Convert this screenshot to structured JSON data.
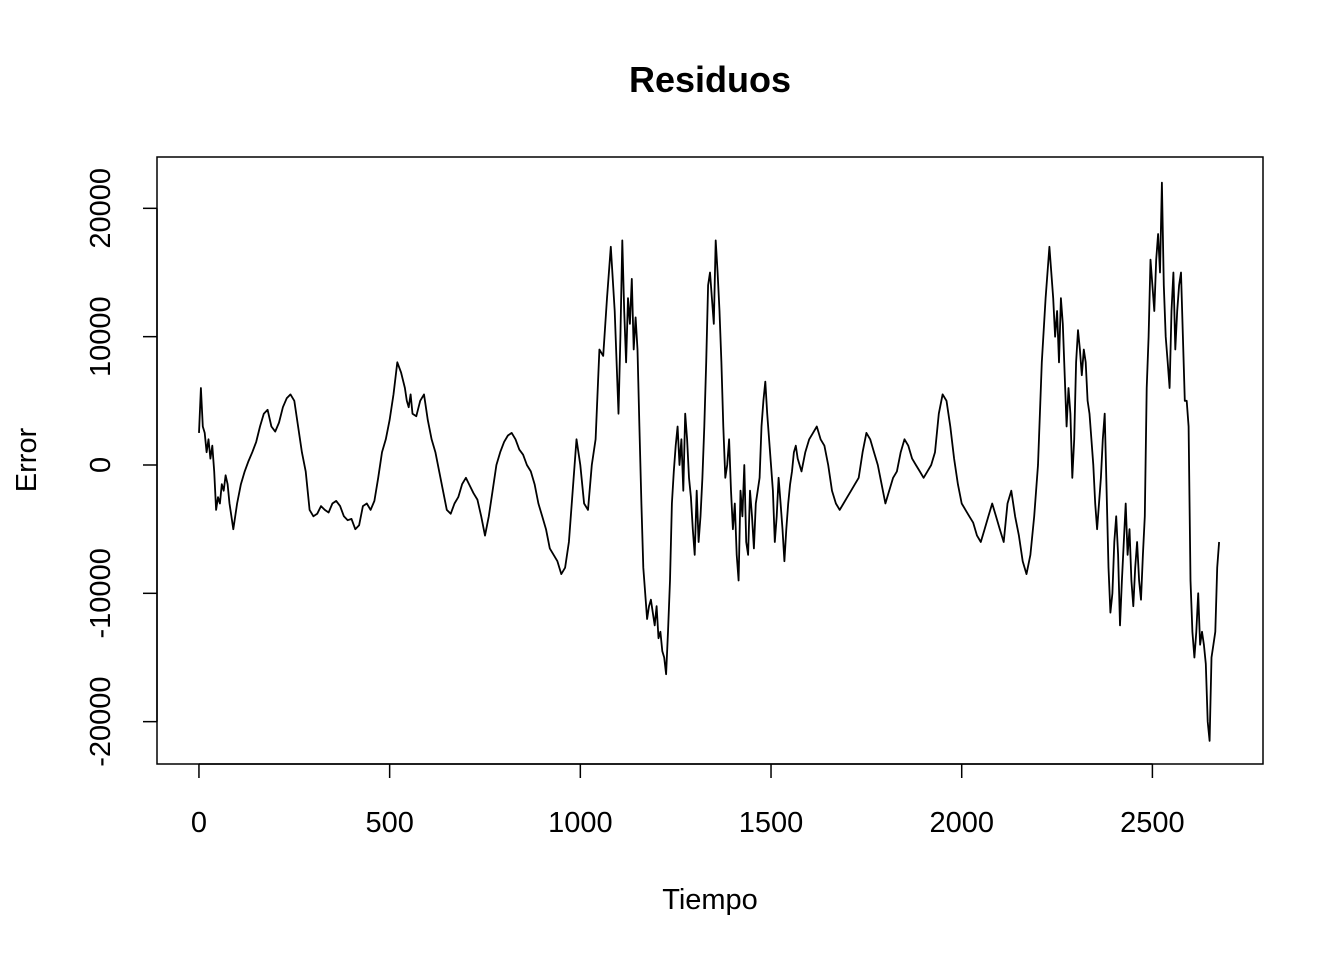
{
  "chart_data": {
    "type": "line",
    "title": "Residuos",
    "xlabel": "Tiempo",
    "ylabel": "Error",
    "xlim": [
      -110,
      2790
    ],
    "ylim": [
      -23300,
      24000
    ],
    "xticks": [
      0,
      500,
      1000,
      1500,
      2000,
      2500
    ],
    "yticks": [
      -20000,
      -10000,
      0,
      10000,
      20000
    ],
    "grid": false,
    "line_color": "#000000",
    "series": [
      {
        "x": [
          0,
          5,
          10,
          15,
          20,
          25,
          30,
          35,
          40,
          45,
          50,
          55,
          60,
          65,
          70,
          75,
          80,
          85,
          90,
          100,
          110,
          120,
          130,
          140,
          150,
          160,
          170,
          180,
          190,
          200,
          210,
          220,
          230,
          240,
          250,
          260,
          270,
          280,
          290,
          300,
          310,
          320,
          330,
          340,
          350,
          360,
          370,
          380,
          390,
          400,
          410,
          420,
          430,
          440,
          450,
          460,
          470,
          480,
          490,
          500,
          510,
          520,
          530,
          540,
          545,
          550,
          555,
          560,
          570,
          580,
          590,
          600,
          610,
          620,
          630,
          640,
          650,
          660,
          670,
          680,
          690,
          700,
          710,
          720,
          730,
          740,
          750,
          760,
          770,
          780,
          790,
          800,
          810,
          820,
          830,
          840,
          850,
          860,
          870,
          880,
          890,
          900,
          910,
          920,
          930,
          940,
          950,
          960,
          970,
          980,
          990,
          1000,
          1010,
          1020,
          1030,
          1040,
          1050,
          1060,
          1070,
          1080,
          1090,
          1100,
          1105,
          1110,
          1115,
          1120,
          1125,
          1130,
          1135,
          1140,
          1145,
          1150,
          1155,
          1160,
          1165,
          1170,
          1175,
          1180,
          1185,
          1190,
          1195,
          1200,
          1205,
          1210,
          1215,
          1220,
          1225,
          1230,
          1235,
          1240,
          1245,
          1250,
          1255,
          1260,
          1265,
          1270,
          1275,
          1280,
          1285,
          1290,
          1295,
          1300,
          1305,
          1310,
          1315,
          1320,
          1325,
          1330,
          1335,
          1340,
          1345,
          1350,
          1355,
          1360,
          1365,
          1370,
          1375,
          1380,
          1385,
          1390,
          1395,
          1400,
          1405,
          1410,
          1415,
          1420,
          1425,
          1430,
          1435,
          1440,
          1445,
          1450,
          1455,
          1460,
          1465,
          1470,
          1475,
          1480,
          1485,
          1490,
          1495,
          1500,
          1505,
          1510,
          1515,
          1520,
          1525,
          1530,
          1535,
          1540,
          1545,
          1550,
          1555,
          1560,
          1565,
          1570,
          1575,
          1580,
          1590,
          1600,
          1610,
          1620,
          1630,
          1640,
          1650,
          1660,
          1670,
          1680,
          1690,
          1700,
          1710,
          1720,
          1730,
          1740,
          1750,
          1760,
          1770,
          1780,
          1790,
          1800,
          1810,
          1820,
          1830,
          1840,
          1850,
          1860,
          1870,
          1880,
          1890,
          1900,
          1910,
          1920,
          1930,
          1940,
          1950,
          1960,
          1970,
          1980,
          1990,
          2000,
          2010,
          2020,
          2030,
          2040,
          2050,
          2060,
          2070,
          2080,
          2090,
          2100,
          2110,
          2120,
          2130,
          2140,
          2150,
          2160,
          2170,
          2180,
          2190,
          2200,
          2210,
          2220,
          2230,
          2240,
          2245,
          2250,
          2255,
          2260,
          2265,
          2270,
          2275,
          2280,
          2285,
          2290,
          2295,
          2300,
          2305,
          2310,
          2315,
          2320,
          2325,
          2330,
          2335,
          2340,
          2345,
          2350,
          2355,
          2360,
          2365,
          2370,
          2375,
          2380,
          2385,
          2390,
          2395,
          2400,
          2405,
          2410,
          2415,
          2420,
          2425,
          2430,
          2435,
          2440,
          2445,
          2450,
          2455,
          2460,
          2465,
          2470,
          2475,
          2480,
          2485,
          2490,
          2495,
          2500,
          2505,
          2510,
          2515,
          2520,
          2525,
          2530,
          2535,
          2540,
          2545,
          2550,
          2555,
          2560,
          2565,
          2570,
          2575,
          2580,
          2585,
          2590,
          2595,
          2600,
          2605,
          2610,
          2615,
          2620,
          2625,
          2630,
          2635,
          2640,
          2645,
          2650,
          2655,
          2660,
          2665,
          2670,
          2675
        ],
        "values": [
          2500,
          6000,
          3000,
          2500,
          1000,
          2000,
          500,
          1500,
          -500,
          -3500,
          -2500,
          -3000,
          -1500,
          -2000,
          -800,
          -1500,
          -3000,
          -4000,
          -5000,
          -3000,
          -1500,
          -500,
          300,
          1000,
          1800,
          3000,
          4000,
          4300,
          3000,
          2600,
          3300,
          4500,
          5200,
          5500,
          5000,
          3000,
          1000,
          -500,
          -3500,
          -4000,
          -3800,
          -3200,
          -3500,
          -3700,
          -3000,
          -2800,
          -3200,
          -4000,
          -4300,
          -4200,
          -5000,
          -4700,
          -3200,
          -3000,
          -3500,
          -2800,
          -1000,
          1000,
          2000,
          3500,
          5500,
          8000,
          7200,
          6000,
          5000,
          4500,
          5500,
          4000,
          3800,
          5000,
          5500,
          3500,
          2000,
          1000,
          -500,
          -2000,
          -3500,
          -3800,
          -3000,
          -2500,
          -1500,
          -1000,
          -1600,
          -2200,
          -2700,
          -4000,
          -5500,
          -4000,
          -2000,
          0,
          1000,
          1800,
          2300,
          2500,
          2000,
          1200,
          800,
          0,
          -500,
          -1500,
          -3000,
          -4000,
          -5000,
          -6500,
          -7000,
          -7500,
          -8500,
          -8000,
          -6000,
          -2000,
          2000,
          0,
          -3000,
          -3500,
          0,
          2000,
          9000,
          8500,
          13000,
          17000,
          12000,
          4000,
          10000,
          17500,
          12000,
          8000,
          13000,
          11000,
          14500,
          9000,
          11500,
          9000,
          3000,
          -3000,
          -8000,
          -10000,
          -12000,
          -11000,
          -10500,
          -11500,
          -12500,
          -11000,
          -13500,
          -13000,
          -14500,
          -15000,
          -16300,
          -13000,
          -9000,
          -3000,
          -500,
          1500,
          3000,
          0,
          2000,
          -2000,
          4000,
          2000,
          -1000,
          -2500,
          -5000,
          -7000,
          -2000,
          -6000,
          -4000,
          -1000,
          3000,
          8000,
          14000,
          15000,
          13000,
          11000,
          17500,
          15000,
          12000,
          8000,
          3000,
          -1000,
          0,
          2000,
          -2000,
          -5000,
          -3000,
          -7000,
          -9000,
          -2000,
          -4000,
          0,
          -6000,
          -7000,
          -2000,
          -4000,
          -6500,
          -3000,
          -2000,
          -1000,
          3000,
          5000,
          6500,
          4000,
          2000,
          0,
          -2000,
          -6000,
          -4000,
          -1000,
          -3000,
          -5000,
          -7500,
          -5000,
          -3000,
          -1500,
          -500,
          1000,
          1500,
          500,
          0,
          -500,
          1000,
          2000,
          2500,
          3000,
          2000,
          1500,
          0,
          -2000,
          -3000,
          -3500,
          -3000,
          -2500,
          -2000,
          -1500,
          -1000,
          1000,
          2500,
          2000,
          1000,
          0,
          -1500,
          -3000,
          -2000,
          -1000,
          -500,
          1000,
          2000,
          1500,
          500,
          0,
          -500,
          -1000,
          -500,
          0,
          1000,
          4000,
          5500,
          5000,
          3000,
          500,
          -1500,
          -3000,
          -3500,
          -4000,
          -4500,
          -5500,
          -6000,
          -5000,
          -4000,
          -3000,
          -4000,
          -5000,
          -6000,
          -3000,
          -2000,
          -4000,
          -5500,
          -7500,
          -8500,
          -7000,
          -4000,
          0,
          8000,
          13000,
          17000,
          13000,
          10000,
          12000,
          8000,
          13000,
          11000,
          7000,
          3000,
          6000,
          4000,
          -1000,
          2000,
          8000,
          10500,
          9000,
          7000,
          9000,
          8000,
          5000,
          4000,
          2000,
          0,
          -3000,
          -5000,
          -3000,
          -1000,
          2000,
          4000,
          -2000,
          -8000,
          -11500,
          -10000,
          -6000,
          -4000,
          -7000,
          -12500,
          -9000,
          -6000,
          -3000,
          -7000,
          -5000,
          -9000,
          -11000,
          -8000,
          -6000,
          -9000,
          -10500,
          -7000,
          -4000,
          6000,
          10000,
          16000,
          14000,
          12000,
          16000,
          18000,
          15000,
          22000,
          14000,
          10000,
          8000,
          6000,
          12000,
          15000,
          9000,
          12000,
          14000,
          15000,
          10000,
          5000,
          5000,
          3000,
          -9000,
          -13000,
          -15000,
          -13000,
          -10000,
          -14000,
          -13000,
          -14000,
          -15500,
          -20000,
          -21500,
          -15000,
          -14000,
          -13000,
          -8000,
          -6000
        ]
      }
    ]
  }
}
